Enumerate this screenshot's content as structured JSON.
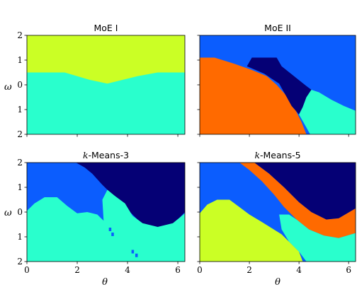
{
  "colors": {
    "lime": "#cbff25",
    "aqua": "#29ffcd",
    "blue": "#0b5dfe",
    "navy": "#050075",
    "orange": "#ff6a00"
  },
  "chart_data": [
    {
      "type": "heatmap",
      "title": "MoE I",
      "xlabel": "",
      "ylabel": "ω",
      "xlim": [
        0,
        6.28
      ],
      "ylim": [
        -2,
        2
      ],
      "x_ticks": [],
      "y_ticks": [
        "2",
        "1",
        "0",
        "1",
        "2"
      ],
      "background": "aqua",
      "regions": [
        {
          "color": "lime",
          "points": [
            [
              0,
              2
            ],
            [
              6.28,
              2
            ],
            [
              6.28,
              0.5
            ],
            [
              5.2,
              0.5
            ],
            [
              4.4,
              0.35
            ],
            [
              3.2,
              0.05
            ],
            [
              2.5,
              0.2
            ],
            [
              2.0,
              0.35
            ],
            [
              1.5,
              0.5
            ],
            [
              0,
              0.5
            ]
          ]
        }
      ]
    },
    {
      "type": "heatmap",
      "title": "MoE II",
      "xlabel": "",
      "ylabel": "",
      "xlim": [
        0,
        6.28
      ],
      "ylim": [
        -2,
        2
      ],
      "x_ticks": [],
      "y_ticks": [],
      "background": "blue",
      "regions": [
        {
          "color": "orange",
          "points": [
            [
              0,
              1.1
            ],
            [
              0.6,
              1.1
            ],
            [
              1.4,
              0.85
            ],
            [
              2.1,
              0.6
            ],
            [
              2.7,
              0.35
            ],
            [
              3.1,
              0.0
            ],
            [
              3.5,
              -0.45
            ],
            [
              3.8,
              -0.9
            ],
            [
              4.1,
              -1.5
            ],
            [
              4.3,
              -2
            ],
            [
              0,
              -2
            ]
          ]
        },
        {
          "color": "navy",
          "points": [
            [
              1.9,
              0.75
            ],
            [
              2.1,
              1.1
            ],
            [
              3.1,
              1.1
            ],
            [
              3.3,
              0.75
            ],
            [
              3.8,
              0.35
            ],
            [
              4.3,
              -0.05
            ],
            [
              4.5,
              -0.2
            ],
            [
              4.3,
              -0.5
            ],
            [
              4.15,
              -0.9
            ],
            [
              4.0,
              -1.2
            ],
            [
              3.7,
              -0.85
            ],
            [
              3.45,
              -0.4
            ],
            [
              3.2,
              0.05
            ],
            [
              2.6,
              0.45
            ]
          ]
        },
        {
          "color": "aqua",
          "points": [
            [
              4.0,
              -1.2
            ],
            [
              4.15,
              -0.9
            ],
            [
              4.3,
              -0.5
            ],
            [
              4.5,
              -0.2
            ],
            [
              4.8,
              -0.3
            ],
            [
              5.3,
              -0.6
            ],
            [
              5.8,
              -0.85
            ],
            [
              6.28,
              -1.05
            ],
            [
              6.28,
              -2
            ],
            [
              4.45,
              -2
            ],
            [
              4.2,
              -1.55
            ]
          ]
        }
      ]
    },
    {
      "type": "heatmap",
      "title": "k-Means-3",
      "title_math": "k",
      "title_rest": "-Means-3",
      "xlabel": "θ",
      "ylabel": "ω",
      "xlim": [
        0,
        6.28
      ],
      "ylim": [
        -2,
        2
      ],
      "x_ticks": [
        "0",
        "2",
        "4",
        "6"
      ],
      "y_ticks": [
        "2",
        "1",
        "0",
        "1",
        "2"
      ],
      "background": "blue",
      "regions": [
        {
          "color": "navy",
          "points": [
            [
              1.95,
              2
            ],
            [
              6.28,
              2
            ],
            [
              6.28,
              0.0
            ],
            [
              6.0,
              -0.3
            ],
            [
              5.8,
              -0.55
            ],
            [
              5.3,
              -0.65
            ],
            [
              4.7,
              -0.55
            ],
            [
              4.4,
              -0.3
            ],
            [
              4.1,
              0.0
            ],
            [
              3.8,
              0.35
            ],
            [
              3.4,
              0.7
            ],
            [
              3.0,
              1.1
            ],
            [
              2.6,
              1.55
            ],
            [
              2.3,
              1.8
            ]
          ]
        },
        {
          "color": "aqua",
          "points": [
            [
              0,
              0.05
            ],
            [
              0.3,
              0.35
            ],
            [
              0.7,
              0.6
            ],
            [
              1.2,
              0.6
            ],
            [
              1.6,
              0.25
            ],
            [
              2.0,
              -0.05
            ],
            [
              2.4,
              0.0
            ],
            [
              2.8,
              -0.1
            ],
            [
              3.05,
              -0.35
            ],
            [
              3.0,
              0.5
            ],
            [
              3.2,
              0.9
            ],
            [
              3.5,
              0.65
            ],
            [
              3.9,
              0.35
            ],
            [
              4.2,
              -0.15
            ],
            [
              4.6,
              -0.45
            ],
            [
              5.2,
              -0.6
            ],
            [
              5.8,
              -0.45
            ],
            [
              6.28,
              -0.05
            ],
            [
              6.28,
              -2
            ],
            [
              0,
              -2
            ]
          ]
        }
      ],
      "specks": [
        {
          "color": "blue",
          "points": [
            [
              4.2,
              -1.6
            ],
            [
              4.35,
              -1.75
            ],
            [
              3.4,
              -0.9
            ],
            [
              3.3,
              -0.7
            ]
          ]
        }
      ]
    },
    {
      "type": "heatmap",
      "title": "k-Means-5",
      "title_math": "k",
      "title_rest": "-Means-5",
      "xlabel": "θ",
      "ylabel": "",
      "xlim": [
        0,
        6.28
      ],
      "ylim": [
        -2,
        2
      ],
      "x_ticks": [
        "0",
        "2",
        "4",
        "6"
      ],
      "y_ticks": [],
      "background": "blue",
      "regions": [
        {
          "color": "orange",
          "points": [
            [
              1.6,
              2
            ],
            [
              2.2,
              2
            ],
            [
              2.8,
              1.55
            ],
            [
              3.4,
              1.0
            ],
            [
              4.0,
              0.4
            ],
            [
              4.5,
              0.0
            ],
            [
              5.1,
              -0.3
            ],
            [
              5.6,
              -0.25
            ],
            [
              6.28,
              0.15
            ],
            [
              6.28,
              -0.85
            ],
            [
              5.6,
              -1.05
            ],
            [
              5.0,
              -0.95
            ],
            [
              4.4,
              -0.7
            ],
            [
              3.9,
              -0.3
            ],
            [
              3.4,
              0.2
            ],
            [
              3.0,
              0.7
            ],
            [
              2.5,
              1.25
            ],
            [
              2.0,
              1.7
            ]
          ]
        },
        {
          "color": "navy",
          "points": [
            [
              2.2,
              2
            ],
            [
              6.28,
              2
            ],
            [
              6.28,
              0.15
            ],
            [
              5.6,
              -0.25
            ],
            [
              5.1,
              -0.3
            ],
            [
              4.5,
              0.0
            ],
            [
              4.0,
              0.4
            ],
            [
              3.4,
              1.0
            ],
            [
              2.8,
              1.55
            ]
          ]
        },
        {
          "color": "aqua",
          "points": [
            [
              3.2,
              -0.1
            ],
            [
              3.6,
              -0.1
            ],
            [
              3.9,
              -0.3
            ],
            [
              4.4,
              -0.7
            ],
            [
              5.0,
              -0.95
            ],
            [
              5.6,
              -1.05
            ],
            [
              6.28,
              -0.85
            ],
            [
              6.28,
              -2
            ],
            [
              4.3,
              -2
            ],
            [
              4.0,
              -1.6
            ],
            [
              3.6,
              -1.2
            ],
            [
              3.3,
              -0.7
            ]
          ]
        },
        {
          "color": "lime",
          "points": [
            [
              0,
              -0.05
            ],
            [
              0.3,
              0.3
            ],
            [
              0.7,
              0.5
            ],
            [
              1.2,
              0.5
            ],
            [
              1.6,
              0.2
            ],
            [
              2.0,
              -0.1
            ],
            [
              2.5,
              -0.4
            ],
            [
              2.9,
              -0.65
            ],
            [
              3.3,
              -0.9
            ],
            [
              3.7,
              -1.3
            ],
            [
              4.0,
              -1.6
            ],
            [
              4.15,
              -2
            ],
            [
              0,
              -2
            ]
          ]
        }
      ]
    }
  ]
}
